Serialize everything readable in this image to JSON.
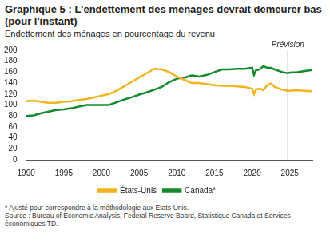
{
  "chart_data": {
    "type": "line",
    "title": "Graphique 5 : L'endettement des ménages devrait demeurer bas (pour l'instant)",
    "subtitle": "Endettement des ménages en pourcentage du revenu",
    "footnote": "* Ajusté pour correspondre à la méthodologie aux États-Unis.",
    "source": "Source : Bureau of Economic Analysis, Federal Reserve Board, Statistique Canada et Services économiques TD.",
    "annotations": [
      {
        "x": 2024.75,
        "text": "Prévision"
      }
    ],
    "x": [
      1990,
      1991,
      1992,
      1993,
      1994,
      1995,
      1996,
      1997,
      1998,
      1999,
      2000,
      2001,
      2002,
      2003,
      2004,
      2005,
      2006,
      2007,
      2008,
      2009,
      2010,
      2011,
      2012,
      2013,
      2014,
      2015,
      2016,
      2017,
      2018,
      2019,
      2020,
      2020.25,
      2020.5,
      2021,
      2021.5,
      2022,
      2022.5,
      2023,
      2024,
      2024.75,
      2025,
      2026,
      2027,
      2028
    ],
    "series": [
      {
        "name": "États-Unis",
        "color": "#f2b31e",
        "values": [
          107,
          108,
          106,
          104,
          104,
          106,
          107,
          109,
          111,
          114,
          117,
          120,
          126,
          134,
          142,
          150,
          158,
          166,
          165,
          160,
          152,
          146,
          140,
          140,
          138,
          136,
          135,
          135,
          134,
          133,
          130,
          120,
          128,
          130,
          127,
          136,
          139,
          133,
          128,
          126,
          126,
          127,
          126,
          125
        ]
      },
      {
        "name": "Canada*",
        "color": "#138a2c",
        "values": [
          80,
          81,
          85,
          88,
          91,
          92,
          94,
          97,
          100,
          100,
          100,
          100,
          105,
          110,
          114,
          119,
          123,
          128,
          133,
          142,
          148,
          150,
          154,
          152,
          155,
          160,
          165,
          165,
          166,
          166,
          168,
          155,
          163,
          165,
          171,
          168,
          168,
          165,
          160,
          158,
          159,
          160,
          162,
          164
        ]
      }
    ],
    "xlim": [
      1990,
      2028
    ],
    "xticks": [
      1990,
      1995,
      2000,
      2005,
      2010,
      2015,
      2020,
      2025
    ],
    "ylim": [
      0,
      200
    ],
    "yticks": [
      0,
      20,
      40,
      60,
      80,
      100,
      120,
      140,
      160,
      180,
      200
    ],
    "grid": false,
    "legend": "bottom"
  }
}
